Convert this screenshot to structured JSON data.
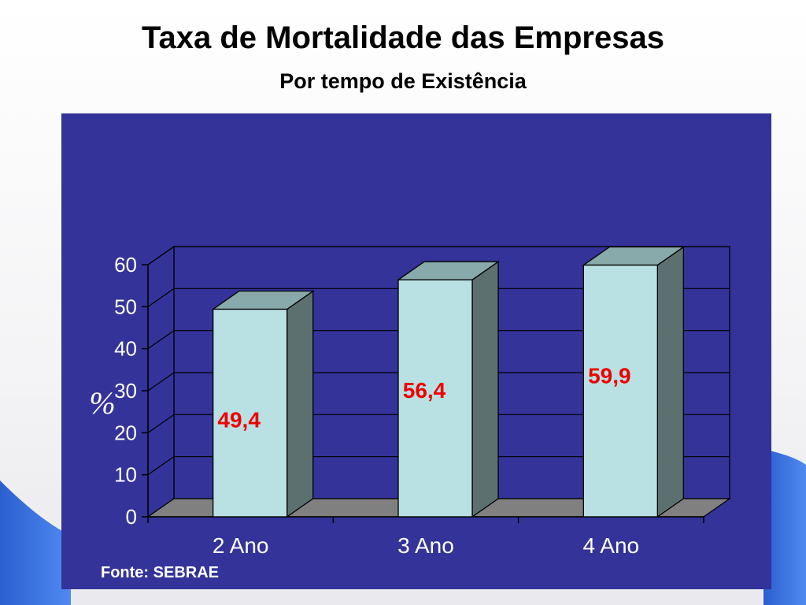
{
  "title": "Taxa de Mortalidade das Empresas",
  "subtitle": "Por tempo de Existência",
  "source": "Fonte: SEBRAE",
  "colors": {
    "panel": "#333399",
    "bar_front": "#b9e0e2",
    "bar_top": "#88aaaa",
    "bar_side": "#5d7070",
    "data_label": "#ee0000",
    "axis_text": "#ffffff"
  },
  "chart_data": {
    "type": "bar",
    "title": "Taxa de Mortalidade das Empresas",
    "subtitle": "Por tempo de Existência",
    "categories": [
      "2 Ano",
      "3 Ano",
      "4 Ano"
    ],
    "values": [
      49.4,
      56.4,
      59.9
    ],
    "data_labels": [
      "49,4",
      "56,4",
      "59,9"
    ],
    "ylabel": "%",
    "xlabel": "",
    "ylim": [
      0,
      60
    ],
    "yticks": [
      "0",
      "10",
      "20",
      "30",
      "40",
      "50",
      "60"
    ],
    "grid": true,
    "style": "3d"
  }
}
